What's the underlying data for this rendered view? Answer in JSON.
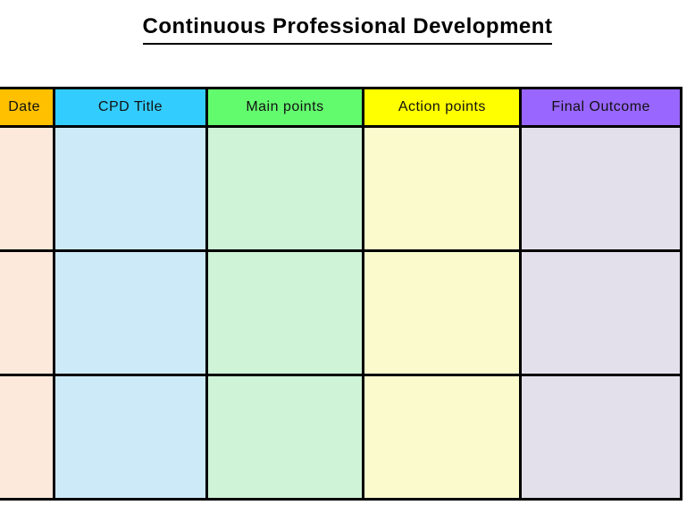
{
  "page": {
    "title": "Continuous Professional Development",
    "background_color": "#ffffff",
    "border_color": "#000000"
  },
  "table": {
    "row_count": 3,
    "columns": [
      {
        "id": "date",
        "label": "Date",
        "header_color": "#FFC000",
        "cell_color": "#FCE9DB"
      },
      {
        "id": "cpd-title",
        "label": "CPD Title",
        "header_color": "#33CCFF",
        "cell_color": "#CDEAF9"
      },
      {
        "id": "main-points",
        "label": "Main points",
        "header_color": "#63FB6E",
        "cell_color": "#CEF3D7"
      },
      {
        "id": "action-points",
        "label": "Action points",
        "header_color": "#FFFF00",
        "cell_color": "#FAFACD"
      },
      {
        "id": "final-outcome",
        "label": "Final Outcome",
        "header_color": "#9966FF",
        "cell_color": "#E4E0EB"
      }
    ],
    "rows": [
      {
        "date": "",
        "cpd_title": "",
        "main_points": "",
        "action_points": "",
        "final_outcome": ""
      },
      {
        "date": "",
        "cpd_title": "",
        "main_points": "",
        "action_points": "",
        "final_outcome": ""
      },
      {
        "date": "",
        "cpd_title": "",
        "main_points": "",
        "action_points": "",
        "final_outcome": ""
      }
    ]
  }
}
